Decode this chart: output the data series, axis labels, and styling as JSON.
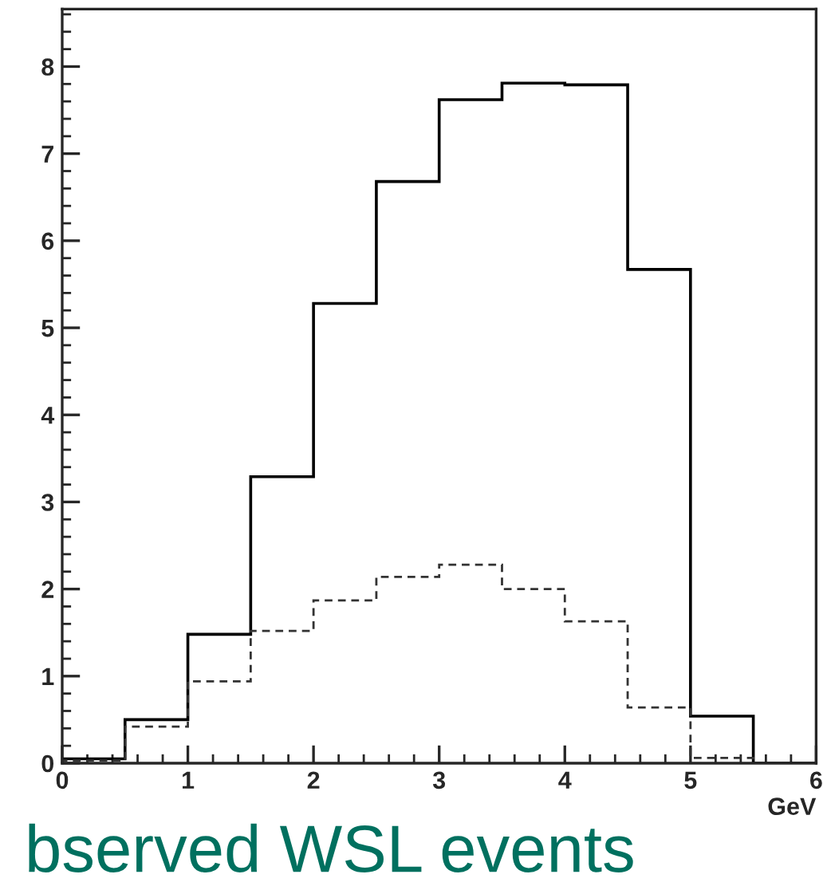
{
  "chart_data": {
    "type": "histogram",
    "xlabel": "GeV",
    "bins": [
      0,
      0.5,
      1,
      1.5,
      2,
      2.5,
      3,
      3.5,
      4,
      4.5,
      5,
      5.5,
      6
    ],
    "series": [
      {
        "color": "#000000",
        "line_style": "solid",
        "values": [
          0.05,
          0.5,
          1.48,
          3.29,
          5.28,
          6.68,
          7.62,
          7.81,
          7.79,
          5.67,
          0.54,
          0
        ]
      },
      {
        "color": "#333333",
        "line_style": "dashed",
        "values": [
          0.03,
          0.42,
          0.94,
          1.52,
          1.87,
          2.14,
          2.28,
          2.0,
          1.63,
          0.64,
          0.06,
          0
        ]
      }
    ],
    "xlim": [
      0,
      6
    ],
    "ylim": [
      0,
      8.66
    ],
    "xticks": [
      0,
      1,
      2,
      3,
      4,
      5,
      6
    ],
    "yticks": [
      0,
      1,
      2,
      3,
      4,
      5,
      6,
      7,
      8
    ],
    "grid": false,
    "annotations": [
      "bserved WSL events"
    ]
  }
}
